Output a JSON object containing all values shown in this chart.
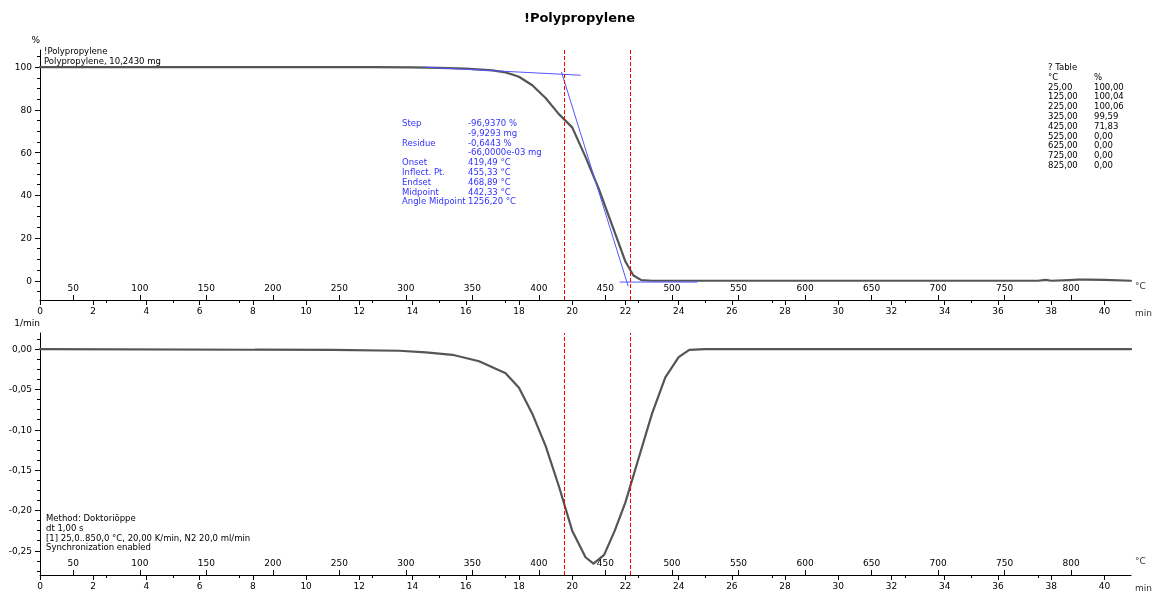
{
  "chart_data": [
    {
      "type": "line",
      "title": "!Polypropylene",
      "xlabel": "min",
      "ylabel": "%",
      "x2label": "°C",
      "xlim": [
        0,
        41
      ],
      "xticks": [
        0,
        2,
        4,
        6,
        8,
        10,
        12,
        14,
        16,
        18,
        20,
        22,
        24,
        26,
        28,
        30,
        32,
        34,
        36,
        38,
        40
      ],
      "x2lim": [
        25,
        845
      ],
      "x2ticks": [
        50,
        100,
        150,
        200,
        250,
        300,
        350,
        400,
        450,
        500,
        550,
        600,
        650,
        700,
        750,
        800
      ],
      "ylim": [
        -9,
        108
      ],
      "yticks": [
        0,
        20,
        40,
        60,
        80,
        100
      ],
      "series": [
        {
          "color": "#555555",
          "x": [
            0,
            2,
            5,
            10,
            12.5,
            14,
            15,
            16,
            17,
            17.5,
            18,
            18.5,
            19,
            19.5,
            20,
            20.5,
            21,
            21.5,
            22,
            22.3,
            22.6,
            23,
            25,
            30,
            35,
            37.5,
            37.8,
            38,
            38.7,
            39,
            39.3,
            40,
            41
          ],
          "values": [
            100,
            100,
            100,
            100,
            100,
            99.9,
            99.6,
            99.3,
            98.5,
            97.5,
            95.5,
            91.5,
            85.5,
            78,
            71.8,
            58,
            43,
            26,
            9,
            2.5,
            0.3,
            0,
            0,
            0,
            0,
            0,
            0.4,
            0,
            0.3,
            0.5,
            0.5,
            0.4,
            0
          ]
        },
        {
          "color": "#5555ff",
          "x": [
            14.4,
            20.3
          ],
          "values": [
            100,
            96.2
          ]
        },
        {
          "color": "#5555ff",
          "x": [
            19.6,
            22.1
          ],
          "values": [
            97.6,
            -2.4
          ]
        },
        {
          "color": "#5555ff",
          "x": [
            21.8,
            24.7
          ],
          "values": [
            -0.6,
            -0.6
          ]
        }
      ],
      "ref_lines": [
        {
          "axis": "x",
          "value": 19.7,
          "color": "#ff0000",
          "line_style": "dashed"
        },
        {
          "axis": "x",
          "value": 22.2,
          "color": "#ff0000",
          "line_style": "dashed"
        }
      ],
      "annotations": [
        "!Polypropylene\nPolypropylene, 10,2430 mg",
        "Step\t-96,9370 %\n\t-9,9293 mg\nResidue\t-0,6443 %\n\t-66,0000e-03 mg\nOnset\t419,49 °C\nInflect. Pt.\t455,33 °C\nEndset\t468,89 °C\nMidpoint\t442,33 °C\nAngle Midpoint\t1256,20 °C",
        "? Table\n°C\t%\n25,00\t100,00\n125,00\t100,04\n225,00\t100,06\n325,00\t99,59\n425,00\t71,83\n525,00\t0,00\n625,00\t0,00\n725,00\t0,00\n825,00\t0,00"
      ],
      "grid": false,
      "marker": "none",
      "line_style": "solid"
    },
    {
      "type": "line",
      "xlabel": "min",
      "ylabel": "1/min",
      "x2label": "°C",
      "xlim": [
        0,
        41
      ],
      "xticks": [
        0,
        2,
        4,
        6,
        8,
        10,
        12,
        14,
        16,
        18,
        20,
        22,
        24,
        26,
        28,
        30,
        32,
        34,
        36,
        38,
        40
      ],
      "x2lim": [
        25,
        845
      ],
      "x2ticks": [
        50,
        100,
        150,
        200,
        250,
        300,
        350,
        400,
        450,
        500,
        550,
        600,
        650,
        700,
        750,
        800
      ],
      "ylim": [
        -0.28,
        0.02
      ],
      "yticks": [
        {
          "value": 0,
          "label": "0,00"
        },
        {
          "value": -0.05,
          "label": "-0,05"
        },
        {
          "value": -0.1,
          "label": "-0,10"
        },
        {
          "value": -0.15,
          "label": "-0,15"
        },
        {
          "value": -0.2,
          "label": "-0,20"
        },
        {
          "value": -0.25,
          "label": "-0,25"
        }
      ],
      "series": [
        {
          "color": "#555555",
          "x": [
            0,
            11,
            13.5,
            14.5,
            15.5,
            16.5,
            17.5,
            18,
            18.5,
            19,
            19.5,
            20,
            20.5,
            20.8,
            21.2,
            21.6,
            22,
            22.5,
            23,
            23.5,
            24,
            24.4,
            25,
            41
          ],
          "values": [
            0,
            -0.001,
            -0.002,
            -0.004,
            -0.007,
            -0.015,
            -0.03,
            -0.048,
            -0.08,
            -0.12,
            -0.17,
            -0.225,
            -0.258,
            -0.266,
            -0.255,
            -0.225,
            -0.19,
            -0.135,
            -0.08,
            -0.035,
            -0.01,
            -0.001,
            0,
            0
          ]
        }
      ],
      "ref_lines": [
        {
          "axis": "x",
          "value": 19.7,
          "color": "#ff0000",
          "line_style": "dashed"
        },
        {
          "axis": "x",
          "value": 22.2,
          "color": "#ff0000",
          "line_style": "dashed"
        }
      ],
      "annotations": [
        "Method: Doktoriöppe\ndt 1,00 s\n[1] 25,0..850,0 °C, 20,00 K/min, N2 20,0 ml/min\nSynchronization enabled"
      ],
      "grid": false,
      "marker": "none",
      "line_style": "solid"
    }
  ]
}
